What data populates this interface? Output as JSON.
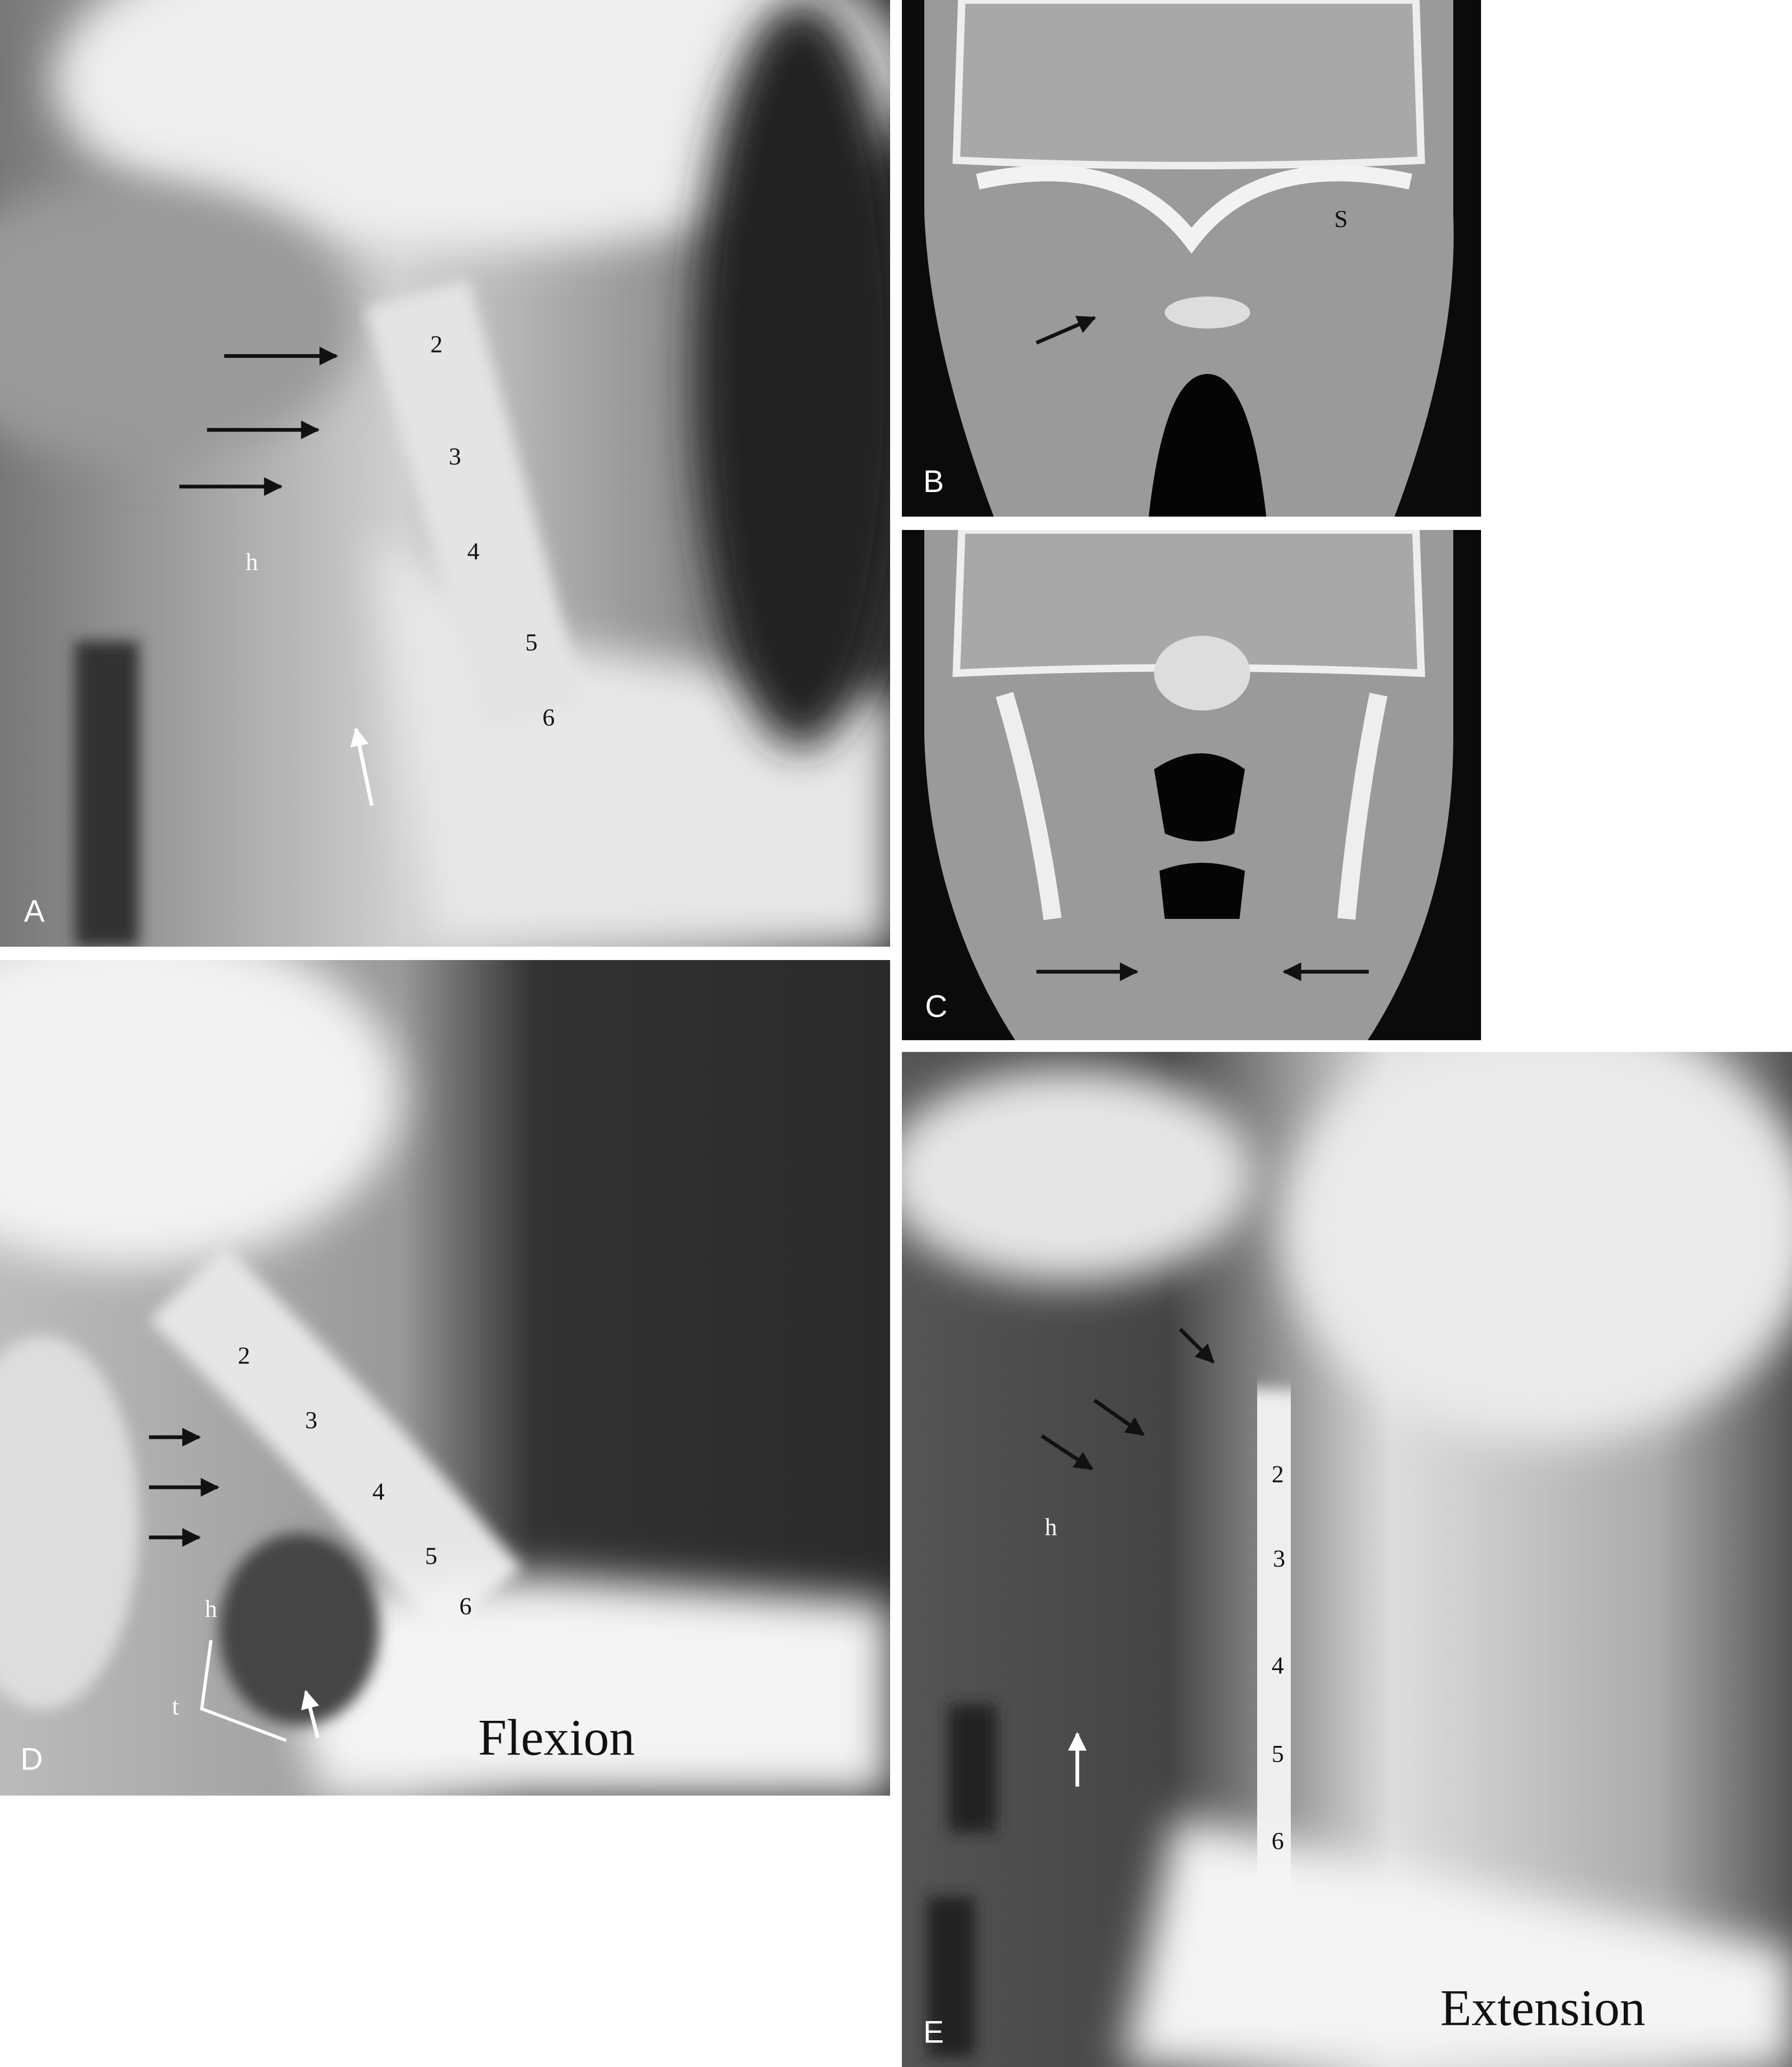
{
  "panels": [
    {
      "letter": "A",
      "labels": [
        "2",
        "3",
        "4",
        "5",
        "6",
        "h"
      ]
    },
    {
      "letter": "B",
      "labels": [
        "S"
      ]
    },
    {
      "letter": "C"
    },
    {
      "letter": "D",
      "labels": [
        "2",
        "3",
        "4",
        "5",
        "6",
        "h",
        "t"
      ],
      "caption": "Flexion"
    },
    {
      "letter": "E",
      "labels": [
        "2",
        "3",
        "4",
        "5",
        "6",
        "h"
      ],
      "caption": "Extension"
    }
  ]
}
